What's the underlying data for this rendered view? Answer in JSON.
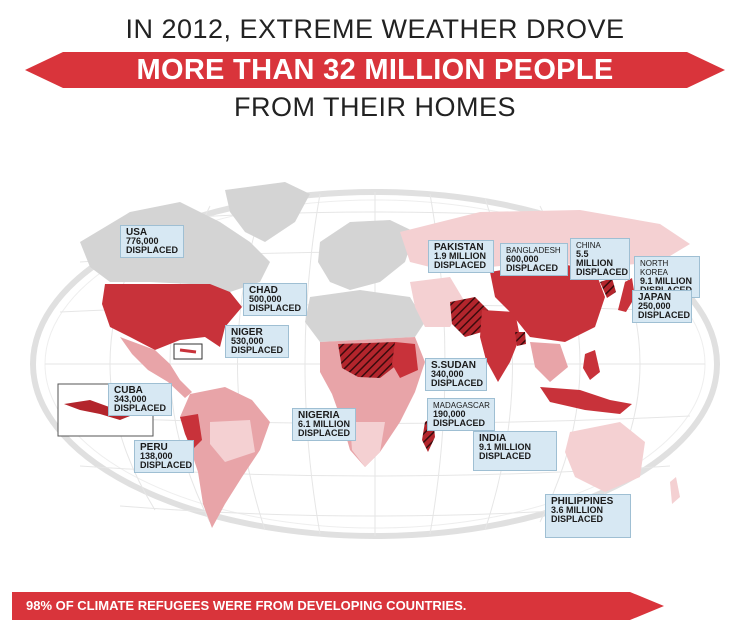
{
  "header": {
    "line1": "IN 2012, EXTREME WEATHER DROVE",
    "banner": "MORE THAN 32 MILLION PEOPLE",
    "line3": "FROM THEIR HOMES"
  },
  "colors": {
    "accent_red": "#d9343b",
    "dark_red": "#b3252c",
    "mid_pink": "#e8a4a8",
    "light_pink": "#f4d0d2",
    "grey_land": "#d4d4d4",
    "callout_bg": "#d7e8f3"
  },
  "callouts": [
    {
      "country": "USA",
      "value": "776,000",
      "unit": "displaced"
    },
    {
      "country": "CHAD",
      "value": "500,000",
      "unit": "displaced"
    },
    {
      "country": "NIGER",
      "value": "530,000",
      "unit": "displaced"
    },
    {
      "country": "CUBA",
      "value": "343,000",
      "unit": "displaced"
    },
    {
      "country": "PERU",
      "value": "138,000",
      "unit": "displaced"
    },
    {
      "country": "NIGERIA",
      "value": "6.1 Million",
      "unit": "displaced"
    },
    {
      "country": "PAKISTAN",
      "value": "1.9 Million",
      "unit": "displaced"
    },
    {
      "country": "BANGLADESH",
      "value": "600,000",
      "unit": "displaced"
    },
    {
      "country": "CHINA",
      "value": "5.5 Million",
      "unit": "displaced"
    },
    {
      "country": "NORTH KOREA",
      "value": "9.1 Million",
      "unit": "displaced"
    },
    {
      "country": "JAPAN",
      "value": "250,000",
      "unit": "displaced"
    },
    {
      "country": "S.SUDAN",
      "value": "340,000",
      "unit": "displaced"
    },
    {
      "country": "MADAGASCAR",
      "value": "190,000",
      "unit": "displaced"
    },
    {
      "country": "INDIA",
      "value": "9.1 Million",
      "unit": "displaced"
    },
    {
      "country": "PHILIPPINES",
      "value": "3.6 Million",
      "unit": "displaced"
    }
  ],
  "footer": {
    "text": "98% OF CLIMATE REFUGEES WERE FROM DEVELOPING COUNTRIES."
  }
}
